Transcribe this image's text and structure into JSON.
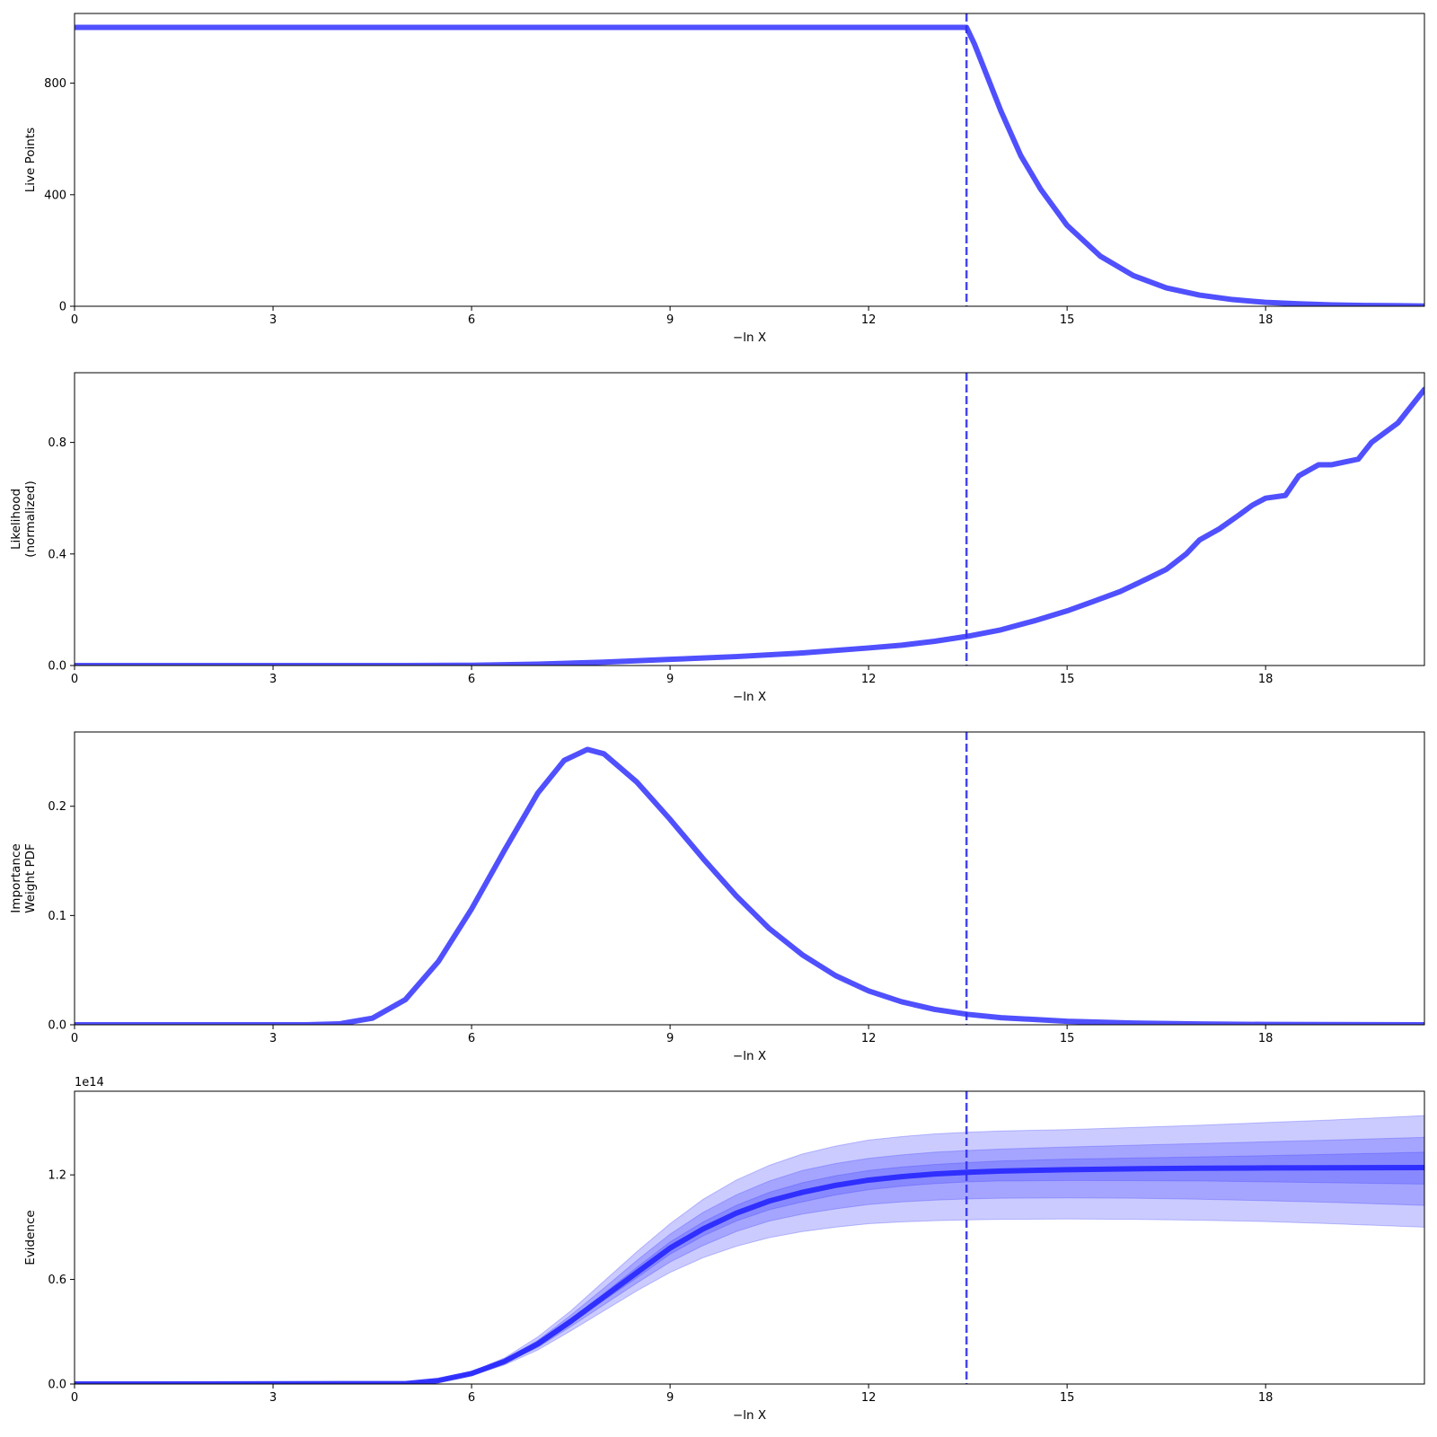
{
  "colors": {
    "line": "#5050ff",
    "marker": "#3030f0",
    "evidence_line": "#2a2aff",
    "band_fill": "#4040ff",
    "axes": "#000000"
  },
  "chart_data": [
    {
      "type": "line",
      "ylabel": [
        "Live Points"
      ],
      "xlabel": "−ln X",
      "xlim": [
        0,
        20.4
      ],
      "ylim": [
        0,
        1050
      ],
      "xticks": [
        0,
        3,
        6,
        9,
        12,
        15,
        18
      ],
      "yticks": [
        0,
        400,
        800
      ],
      "ytick_labels": [
        "0",
        "400",
        "800"
      ],
      "marker_x": 13.48,
      "series": [
        {
          "x": [
            0,
            13.48,
            13.6,
            13.8,
            14.0,
            14.3,
            14.6,
            15.0,
            15.5,
            16.0,
            16.5,
            17.0,
            17.5,
            18.0,
            18.5,
            19.0,
            19.5,
            20.0,
            20.4
          ],
          "values": [
            1000,
            1000,
            940,
            820,
            700,
            540,
            420,
            290,
            180,
            110,
            66,
            40,
            24,
            14,
            9,
            5,
            3,
            2,
            1
          ]
        }
      ]
    },
    {
      "type": "line",
      "ylabel": [
        "Likelihood",
        "(normalized)"
      ],
      "xlabel": "−ln X",
      "xlim": [
        0,
        20.4
      ],
      "ylim": [
        0,
        1.05
      ],
      "xticks": [
        0,
        3,
        6,
        9,
        12,
        15,
        18
      ],
      "yticks": [
        0,
        0.4,
        0.8
      ],
      "ytick_labels": [
        "0.0",
        "0.4",
        "0.8"
      ],
      "marker_x": 13.48,
      "series": [
        {
          "x": [
            0,
            5,
            6,
            7,
            8,
            9,
            10,
            11,
            12,
            12.5,
            13,
            13.5,
            14,
            14.5,
            15,
            15.4,
            15.8,
            16.2,
            16.5,
            16.8,
            17.0,
            17.3,
            17.6,
            17.8,
            18.0,
            18.3,
            18.5,
            18.8,
            19.0,
            19.2,
            19.4,
            19.6,
            20.0,
            20.4
          ],
          "values": [
            0,
            0,
            0.001,
            0.005,
            0.012,
            0.022,
            0.032,
            0.045,
            0.063,
            0.073,
            0.087,
            0.105,
            0.128,
            0.16,
            0.196,
            0.23,
            0.265,
            0.31,
            0.345,
            0.4,
            0.45,
            0.49,
            0.54,
            0.575,
            0.6,
            0.61,
            0.68,
            0.72,
            0.72,
            0.73,
            0.74,
            0.8,
            0.87,
            0.99
          ]
        }
      ]
    },
    {
      "type": "line",
      "ylabel": [
        "Importance",
        "Weight PDF"
      ],
      "xlabel": "−ln X",
      "xlim": [
        0,
        20.4
      ],
      "ylim": [
        0,
        0.268
      ],
      "xticks": [
        0,
        3,
        6,
        9,
        12,
        15,
        18
      ],
      "yticks": [
        0,
        0.1,
        0.2
      ],
      "ytick_labels": [
        "0.0",
        "0.1",
        "0.2"
      ],
      "marker_x": 13.48,
      "series": [
        {
          "x": [
            0,
            3.5,
            4.0,
            4.5,
            5.0,
            5.5,
            6.0,
            6.5,
            7.0,
            7.4,
            7.75,
            8.0,
            8.5,
            9.0,
            9.5,
            10.0,
            10.5,
            11.0,
            11.5,
            12.0,
            12.5,
            13.0,
            13.5,
            14.0,
            15.0,
            16.0,
            17.0,
            18.0,
            20.4
          ],
          "values": [
            0,
            0,
            0.0008,
            0.006,
            0.023,
            0.058,
            0.106,
            0.16,
            0.212,
            0.242,
            0.252,
            0.248,
            0.222,
            0.188,
            0.152,
            0.118,
            0.088,
            0.064,
            0.045,
            0.031,
            0.021,
            0.014,
            0.0095,
            0.0065,
            0.0032,
            0.0015,
            0.0007,
            0.0003,
            0
          ]
        }
      ]
    },
    {
      "type": "area",
      "ylabel": [
        "Evidence"
      ],
      "xlabel": "−ln X",
      "xlim": [
        0,
        20.4
      ],
      "ylim": [
        0,
        1.68
      ],
      "xticks": [
        0,
        3,
        6,
        9,
        12,
        15,
        18
      ],
      "yticks": [
        0,
        0.6,
        1.2
      ],
      "ytick_labels": [
        "0.0",
        "0.6",
        "1.2"
      ],
      "y_offset_label": "1e14",
      "marker_x": 13.48,
      "x": [
        0,
        5,
        5.5,
        6,
        6.5,
        7,
        7.5,
        8,
        8.5,
        9,
        9.5,
        10,
        10.5,
        11,
        11.5,
        12,
        12.5,
        13,
        13.5,
        14,
        15,
        16,
        17,
        18,
        19,
        20.4
      ],
      "series": [
        {
          "name": "",
          "values": [
            0,
            0.002,
            0.02,
            0.06,
            0.13,
            0.23,
            0.36,
            0.5,
            0.64,
            0.78,
            0.89,
            0.98,
            1.05,
            1.1,
            1.14,
            1.17,
            1.19,
            1.205,
            1.215,
            1.222,
            1.23,
            1.235,
            1.238,
            1.24,
            1.241,
            1.242
          ]
        }
      ],
      "bands": [
        {
          "upper": [
            0,
            0.002,
            0.021,
            0.062,
            0.135,
            0.24,
            0.375,
            0.52,
            0.67,
            0.815,
            0.93,
            1.025,
            1.1,
            1.155,
            1.195,
            1.225,
            1.245,
            1.26,
            1.27,
            1.28,
            1.29,
            1.297,
            1.303,
            1.31,
            1.318,
            1.33
          ],
          "lower": [
            0,
            0.002,
            0.019,
            0.058,
            0.125,
            0.22,
            0.345,
            0.48,
            0.61,
            0.745,
            0.85,
            0.935,
            1.0,
            1.045,
            1.085,
            1.115,
            1.135,
            1.15,
            1.16,
            1.165,
            1.168,
            1.167,
            1.165,
            1.16,
            1.155,
            1.147
          ]
        },
        {
          "upper": [
            0,
            0.002,
            0.022,
            0.065,
            0.14,
            0.25,
            0.395,
            0.55,
            0.71,
            0.86,
            0.985,
            1.085,
            1.165,
            1.225,
            1.265,
            1.295,
            1.315,
            1.33,
            1.34,
            1.348,
            1.36,
            1.37,
            1.38,
            1.39,
            1.4,
            1.415
          ],
          "lower": [
            0,
            0.002,
            0.018,
            0.055,
            0.12,
            0.21,
            0.33,
            0.455,
            0.58,
            0.7,
            0.795,
            0.875,
            0.935,
            0.975,
            1.005,
            1.03,
            1.045,
            1.055,
            1.062,
            1.066,
            1.068,
            1.066,
            1.06,
            1.052,
            1.042,
            1.025
          ]
        },
        {
          "upper": [
            0,
            0.002,
            0.024,
            0.07,
            0.15,
            0.27,
            0.42,
            0.59,
            0.76,
            0.92,
            1.06,
            1.17,
            1.255,
            1.32,
            1.365,
            1.4,
            1.42,
            1.435,
            1.445,
            1.452,
            1.46,
            1.472,
            1.485,
            1.5,
            1.515,
            1.54
          ],
          "lower": [
            0,
            0.002,
            0.016,
            0.05,
            0.11,
            0.195,
            0.305,
            0.42,
            0.535,
            0.64,
            0.725,
            0.79,
            0.84,
            0.875,
            0.9,
            0.92,
            0.93,
            0.937,
            0.942,
            0.945,
            0.947,
            0.945,
            0.94,
            0.932,
            0.92,
            0.9
          ]
        }
      ]
    }
  ]
}
